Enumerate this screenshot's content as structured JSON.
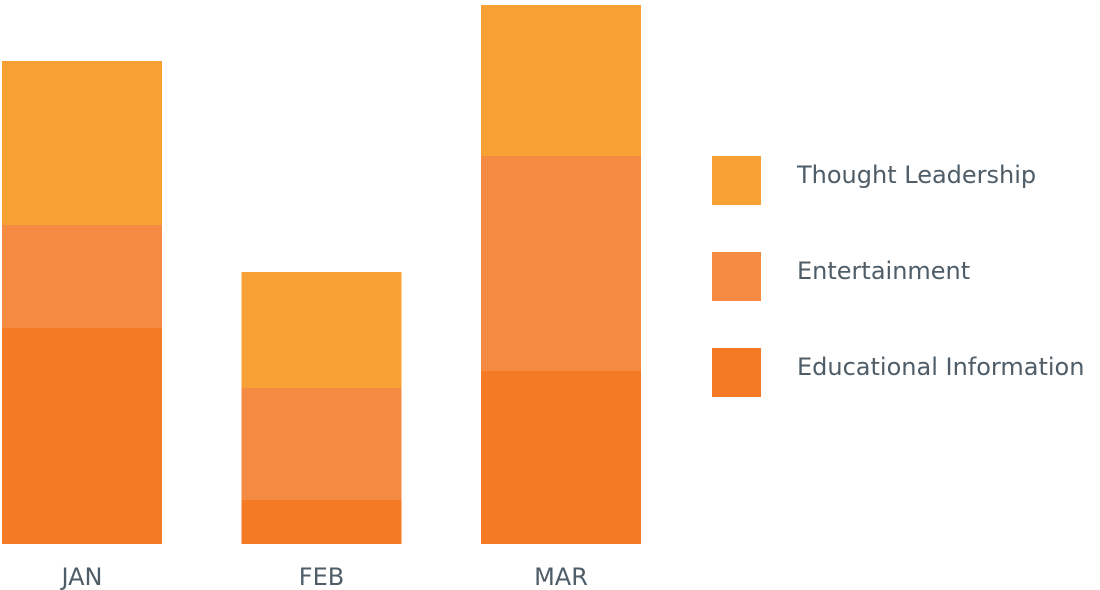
{
  "chart_data": {
    "type": "stacked_bar",
    "categories": [
      "JAN",
      "FEB",
      "MAR"
    ],
    "series": [
      {
        "name": "Educational Information",
        "color": "#f47a25",
        "values": [
          216,
          44,
          173
        ]
      },
      {
        "name": "Entertainment",
        "color": "#f58b43",
        "values": [
          103,
          112,
          215
        ]
      },
      {
        "name": "Thought Leadership",
        "color": "#f7a033",
        "values": [
          164,
          116,
          151
        ]
      }
    ],
    "ylim": [
      0,
      540
    ]
  }
}
